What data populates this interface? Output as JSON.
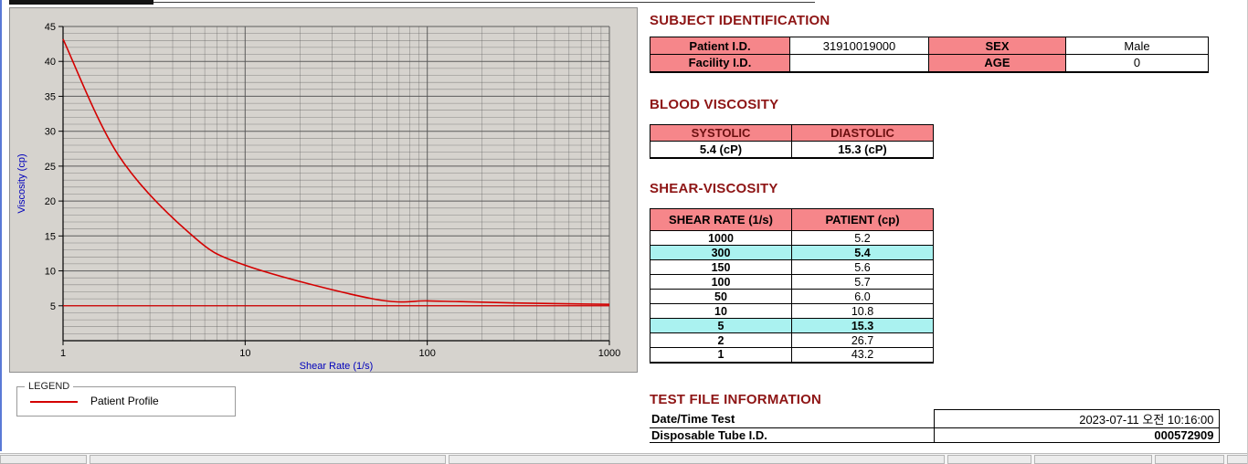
{
  "chart_data": {
    "type": "line",
    "title": "",
    "xlabel": "Shear Rate (1/s)",
    "ylabel": "Viscosity (cp)",
    "x_scale": "log",
    "x_range": [
      1,
      1000
    ],
    "y_range": [
      0,
      45
    ],
    "x_ticks": [
      1,
      10,
      100,
      1000
    ],
    "y_ticks": [
      5,
      10,
      15,
      20,
      25,
      30,
      35,
      40,
      45
    ],
    "grid": true,
    "grid_color": "#565656",
    "panel_bg": "#d6d3ce",
    "axis_label_color": "#0000bb",
    "series": [
      {
        "name": "Patient Profile",
        "color": "#d40000",
        "x": [
          1,
          2,
          5,
          10,
          50,
          100,
          150,
          300,
          1000
        ],
        "y": [
          43.2,
          26.7,
          15.3,
          10.8,
          6.0,
          5.7,
          5.6,
          5.4,
          5.2
        ]
      }
    ],
    "reference_line": {
      "y": 5.0,
      "color": "#d40000"
    }
  },
  "legend": {
    "title": "LEGEND",
    "items": [
      {
        "label": "Patient Profile",
        "color": "#d40000"
      }
    ]
  },
  "subject": {
    "title": "SUBJECT IDENTIFICATION",
    "patient_id_label": "Patient I.D.",
    "patient_id": "31910019000",
    "sex_label": "SEX",
    "sex": "Male",
    "facility_id_label": "Facility I.D.",
    "facility_id": "",
    "age_label": "AGE",
    "age": "0"
  },
  "blood_viscosity": {
    "title": "BLOOD VISCOSITY",
    "systolic_label": "SYSTOLIC",
    "systolic": "5.4 (cP)",
    "diastolic_label": "DIASTOLIC",
    "diastolic": "15.3 (cP)"
  },
  "shear": {
    "title": "SHEAR-VISCOSITY",
    "col1": "SHEAR RATE (1/s)",
    "col2": "PATIENT (cp)",
    "highlight_color": "#aaf2f0",
    "rows": [
      {
        "rate": "1000",
        "cp": "5.2",
        "highlighted": false
      },
      {
        "rate": "300",
        "cp": "5.4",
        "highlighted": true
      },
      {
        "rate": "150",
        "cp": "5.6",
        "highlighted": false
      },
      {
        "rate": "100",
        "cp": "5.7",
        "highlighted": false
      },
      {
        "rate": "50",
        "cp": "6.0",
        "highlighted": false
      },
      {
        "rate": "10",
        "cp": "10.8",
        "highlighted": false
      },
      {
        "rate": "5",
        "cp": "15.3",
        "highlighted": true
      },
      {
        "rate": "2",
        "cp": "26.7",
        "highlighted": false
      },
      {
        "rate": "1",
        "cp": "43.2",
        "highlighted": false
      }
    ]
  },
  "test_file": {
    "title": "TEST FILE INFORMATION",
    "datetime_label": "Date/Time Test",
    "datetime": "2023-07-11   오전 10:16:00",
    "tube_label": "Disposable Tube I.D.",
    "tube_id": "000572909"
  },
  "theme": {
    "heading_color": "#8e1515",
    "table_header_bg": "#f6868a",
    "border_color": "#000000"
  }
}
